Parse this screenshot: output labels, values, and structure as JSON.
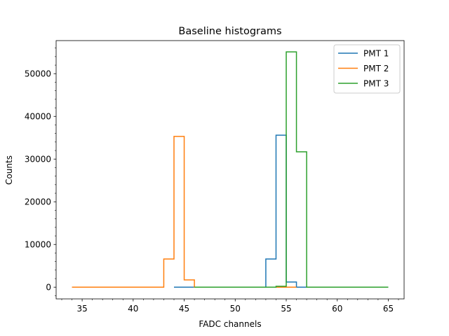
{
  "chart_data": {
    "type": "line",
    "title": "Baseline histograms",
    "xlabel": "FADC channels",
    "ylabel": "Counts",
    "xlim": [
      32.45,
      66.55
    ],
    "ylim": [
      -2750,
      57750
    ],
    "xticks": [
      35,
      40,
      45,
      50,
      55,
      60,
      65
    ],
    "xminor_step": 1,
    "yticks": [
      0,
      10000,
      20000,
      30000,
      40000,
      50000
    ],
    "yminor_step": 2000,
    "grid": false,
    "legend_position": "top-right",
    "drawstyle": "steps-post",
    "series": [
      {
        "name": "PMT 1",
        "color": "#1f77b4",
        "x": [
          44,
          45,
          46,
          47,
          48,
          49,
          50,
          51,
          52,
          53,
          54,
          55,
          56,
          57,
          58,
          59,
          60,
          61,
          62,
          63,
          64,
          65
        ],
        "y": [
          0,
          0,
          0,
          0,
          0,
          0,
          0,
          0,
          0,
          6600,
          35600,
          1200,
          0,
          0,
          0,
          0,
          0,
          0,
          0,
          0,
          0,
          0
        ]
      },
      {
        "name": "PMT 2",
        "color": "#ff7f0e",
        "x": [
          34,
          35,
          36,
          37,
          38,
          39,
          40,
          41,
          42,
          43,
          44,
          45,
          46,
          47,
          48,
          49,
          50,
          51,
          52,
          53,
          54,
          55,
          56
        ],
        "y": [
          0,
          0,
          0,
          0,
          0,
          0,
          0,
          0,
          0,
          6600,
          35300,
          1700,
          0,
          0,
          0,
          0,
          0,
          0,
          0,
          0,
          0,
          0,
          0
        ]
      },
      {
        "name": "PMT 3",
        "color": "#2ca02c",
        "x": [
          46,
          47,
          48,
          49,
          50,
          51,
          52,
          53,
          54,
          55,
          56,
          57,
          58,
          59,
          60,
          61,
          62,
          63,
          64,
          65
        ],
        "y": [
          0,
          0,
          0,
          0,
          0,
          0,
          0,
          0,
          200,
          55100,
          31700,
          0,
          0,
          0,
          0,
          0,
          0,
          0,
          0,
          0
        ]
      }
    ]
  }
}
